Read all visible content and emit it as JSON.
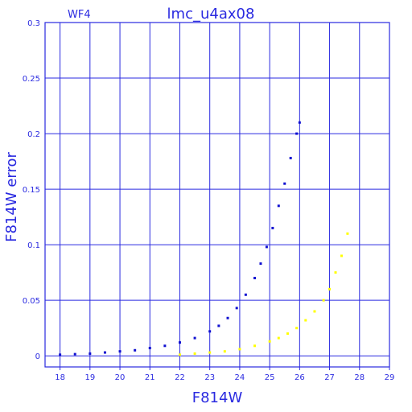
{
  "chart_data": {
    "type": "scatter",
    "title": "lmc_u4ax08",
    "corner_label": "WF4",
    "xlabel": "F814W",
    "ylabel": "F814W error",
    "xlim": [
      17.5,
      29
    ],
    "ylim": [
      -0.01,
      0.3
    ],
    "x_ticks": [
      18,
      19,
      20,
      21,
      22,
      23,
      24,
      25,
      26,
      27,
      28,
      29
    ],
    "y_ticks": [
      0,
      0.05,
      0.1,
      0.15,
      0.2,
      0.25,
      0.3
    ],
    "y_tick_labels": [
      "0",
      "0.05",
      "0.1",
      "0.15",
      "0.2",
      "0.25",
      "0.3"
    ],
    "grid": true,
    "colors": {
      "frame": "#2a2ae0",
      "grid": "#2a2ae0",
      "series_blue": "#1010d0",
      "series_yellow": "#ffff00"
    },
    "series": [
      {
        "color": "#1010d0",
        "x": [
          18.0,
          18.5,
          19.0,
          19.5,
          20.0,
          20.5,
          21.0,
          21.5,
          22.0,
          22.5,
          23.0,
          23.3,
          23.6,
          23.9,
          24.2,
          24.5,
          24.7,
          24.9,
          25.1,
          25.3,
          25.5,
          25.7,
          25.9,
          26.0
        ],
        "y": [
          0.001,
          0.0015,
          0.002,
          0.003,
          0.004,
          0.005,
          0.007,
          0.009,
          0.012,
          0.016,
          0.022,
          0.027,
          0.034,
          0.043,
          0.055,
          0.07,
          0.083,
          0.098,
          0.115,
          0.135,
          0.155,
          0.178,
          0.2,
          0.21
        ]
      },
      {
        "color": "#ffff00",
        "x": [
          22.0,
          22.5,
          23.0,
          23.5,
          24.0,
          24.5,
          25.0,
          25.3,
          25.6,
          25.9,
          26.2,
          26.5,
          26.8,
          27.0,
          27.2,
          27.4,
          27.6
        ],
        "y": [
          0.001,
          0.002,
          0.003,
          0.004,
          0.006,
          0.009,
          0.013,
          0.016,
          0.02,
          0.025,
          0.032,
          0.04,
          0.05,
          0.06,
          0.075,
          0.09,
          0.11
        ]
      }
    ]
  }
}
